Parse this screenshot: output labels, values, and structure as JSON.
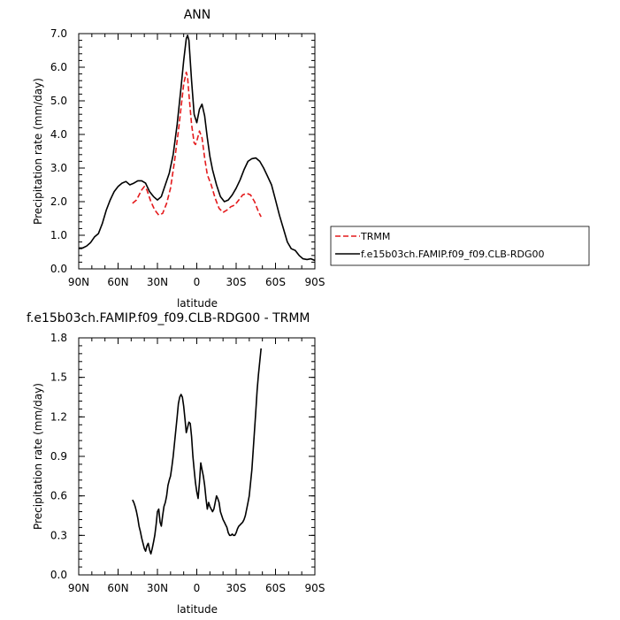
{
  "chart_data": [
    {
      "type": "line",
      "title": "ANN",
      "xlabel": "latitude",
      "ylabel": "Precipitation rate (mm/day)",
      "xlim": [
        90,
        -90
      ],
      "ylim": [
        0.0,
        7.0
      ],
      "x_tick_values": [
        90,
        60,
        30,
        0,
        -30,
        -60,
        -90
      ],
      "x_tick_labels": [
        "90N",
        "60N",
        "30N",
        "0",
        "30S",
        "60S",
        "90S"
      ],
      "y_tick_values": [
        0,
        1,
        2,
        3,
        4,
        5,
        6,
        7
      ],
      "y_tick_labels": [
        "0.0",
        "1.0",
        "2.0",
        "3.0",
        "4.0",
        "5.0",
        "6.0",
        "7.0"
      ],
      "legend_position": "right",
      "series": [
        {
          "name": "TRMM",
          "color": "#e41a1c",
          "dash": "dashed",
          "x": [
            49,
            46,
            42,
            40,
            38,
            35,
            32,
            29,
            26,
            23,
            20,
            17,
            14,
            12,
            10,
            8,
            7,
            6,
            4,
            2,
            1,
            0,
            -2,
            -4,
            -6,
            -8,
            -11,
            -14,
            -17,
            -20,
            -23,
            -26,
            -29,
            -32,
            -35,
            -38,
            -41,
            -44,
            -47,
            -49
          ],
          "y": [
            1.95,
            2.05,
            2.35,
            2.45,
            2.35,
            2.0,
            1.75,
            1.6,
            1.65,
            1.95,
            2.4,
            3.2,
            4.1,
            4.8,
            5.5,
            5.85,
            5.7,
            5.2,
            4.3,
            3.75,
            3.7,
            3.8,
            4.1,
            3.9,
            3.3,
            2.8,
            2.5,
            2.1,
            1.8,
            1.68,
            1.75,
            1.85,
            1.9,
            2.05,
            2.2,
            2.25,
            2.2,
            2.0,
            1.7,
            1.55
          ]
        },
        {
          "name": "f.e15b03ch.FAMIP.f09_f09.CLB-RDG00",
          "color": "#000000",
          "dash": "solid",
          "x": [
            90,
            87,
            84,
            81,
            78,
            75,
            72,
            69,
            66,
            63,
            60,
            57,
            54,
            51,
            48,
            45,
            42,
            39,
            36,
            33,
            30,
            27,
            24,
            21,
            18,
            15,
            12,
            10,
            8,
            7,
            6,
            4,
            2,
            0,
            -2,
            -4,
            -6,
            -8,
            -10,
            -12,
            -15,
            -18,
            -21,
            -24,
            -27,
            -30,
            -33,
            -36,
            -39,
            -42,
            -45,
            -48,
            -51,
            -54,
            -57,
            -60,
            -63,
            -66,
            -69,
            -72,
            -75,
            -78,
            -81,
            -84,
            -87,
            -90
          ],
          "y": [
            0.62,
            0.62,
            0.68,
            0.78,
            0.95,
            1.05,
            1.35,
            1.75,
            2.05,
            2.3,
            2.45,
            2.55,
            2.6,
            2.5,
            2.55,
            2.62,
            2.62,
            2.55,
            2.3,
            2.15,
            2.05,
            2.15,
            2.5,
            2.85,
            3.4,
            4.3,
            5.4,
            6.2,
            6.85,
            6.95,
            6.8,
            5.6,
            4.6,
            4.35,
            4.75,
            4.9,
            4.55,
            3.9,
            3.35,
            2.95,
            2.5,
            2.15,
            2.0,
            2.05,
            2.2,
            2.4,
            2.65,
            2.95,
            3.2,
            3.28,
            3.3,
            3.2,
            3.0,
            2.75,
            2.5,
            2.05,
            1.6,
            1.2,
            0.8,
            0.6,
            0.55,
            0.4,
            0.3,
            0.28,
            0.3,
            0.25
          ]
        }
      ]
    },
    {
      "type": "line",
      "title": "f.e15b03ch.FAMIP.f09_f09.CLB-RDG00 - TRMM",
      "xlabel": "latitude",
      "ylabel": "Precipitation rate (mm/day)",
      "xlim": [
        90,
        -90
      ],
      "ylim": [
        0.0,
        1.8
      ],
      "x_tick_values": [
        90,
        60,
        30,
        0,
        -30,
        -60,
        -90
      ],
      "x_tick_labels": [
        "90N",
        "60N",
        "30N",
        "0",
        "30S",
        "60S",
        "90S"
      ],
      "y_tick_values": [
        0.0,
        0.3,
        0.6,
        0.9,
        1.2,
        1.5,
        1.8
      ],
      "y_tick_labels": [
        "0.0",
        "0.3",
        "0.6",
        "0.9",
        "1.2",
        "1.5",
        "1.8"
      ],
      "series": [
        {
          "color": "#000000",
          "dash": "solid",
          "x": [
            49,
            48,
            47,
            46,
            45,
            44,
            43,
            42,
            41,
            40,
            39,
            38,
            37,
            36,
            35,
            34,
            33,
            32,
            31,
            30,
            29,
            28,
            27,
            26,
            25,
            24,
            23,
            22,
            21,
            20,
            19,
            18,
            17,
            16,
            15,
            14,
            13,
            12,
            11,
            10,
            9,
            8,
            7,
            6,
            5,
            4,
            3,
            2,
            1,
            0,
            -1,
            -2,
            -3,
            -4,
            -5,
            -6,
            -7,
            -8,
            -9,
            -10,
            -11,
            -12,
            -13,
            -14,
            -15,
            -16,
            -17,
            -18,
            -19,
            -20,
            -21,
            -22,
            -23,
            -24,
            -25,
            -26,
            -27,
            -28,
            -29,
            -30,
            -31,
            -32,
            -33,
            -34,
            -35,
            -36,
            -37,
            -38,
            -39,
            -40,
            -41,
            -42,
            -43,
            -44,
            -45,
            -46,
            -47,
            -48,
            -49
          ],
          "y": [
            0.57,
            0.55,
            0.52,
            0.48,
            0.43,
            0.37,
            0.33,
            0.28,
            0.24,
            0.2,
            0.18,
            0.22,
            0.24,
            0.19,
            0.16,
            0.2,
            0.25,
            0.3,
            0.38,
            0.48,
            0.5,
            0.4,
            0.37,
            0.45,
            0.52,
            0.55,
            0.6,
            0.68,
            0.72,
            0.75,
            0.82,
            0.9,
            1.0,
            1.1,
            1.2,
            1.3,
            1.35,
            1.37,
            1.35,
            1.28,
            1.18,
            1.08,
            1.12,
            1.16,
            1.15,
            1.05,
            0.9,
            0.8,
            0.7,
            0.63,
            0.58,
            0.7,
            0.85,
            0.8,
            0.75,
            0.68,
            0.58,
            0.5,
            0.55,
            0.52,
            0.5,
            0.48,
            0.5,
            0.55,
            0.6,
            0.58,
            0.55,
            0.48,
            0.45,
            0.42,
            0.4,
            0.38,
            0.36,
            0.32,
            0.3,
            0.3,
            0.31,
            0.3,
            0.3,
            0.32,
            0.35,
            0.37,
            0.38,
            0.39,
            0.4,
            0.42,
            0.45,
            0.5,
            0.55,
            0.6,
            0.7,
            0.8,
            0.95,
            1.1,
            1.25,
            1.4,
            1.52,
            1.62,
            1.72
          ]
        }
      ]
    }
  ]
}
